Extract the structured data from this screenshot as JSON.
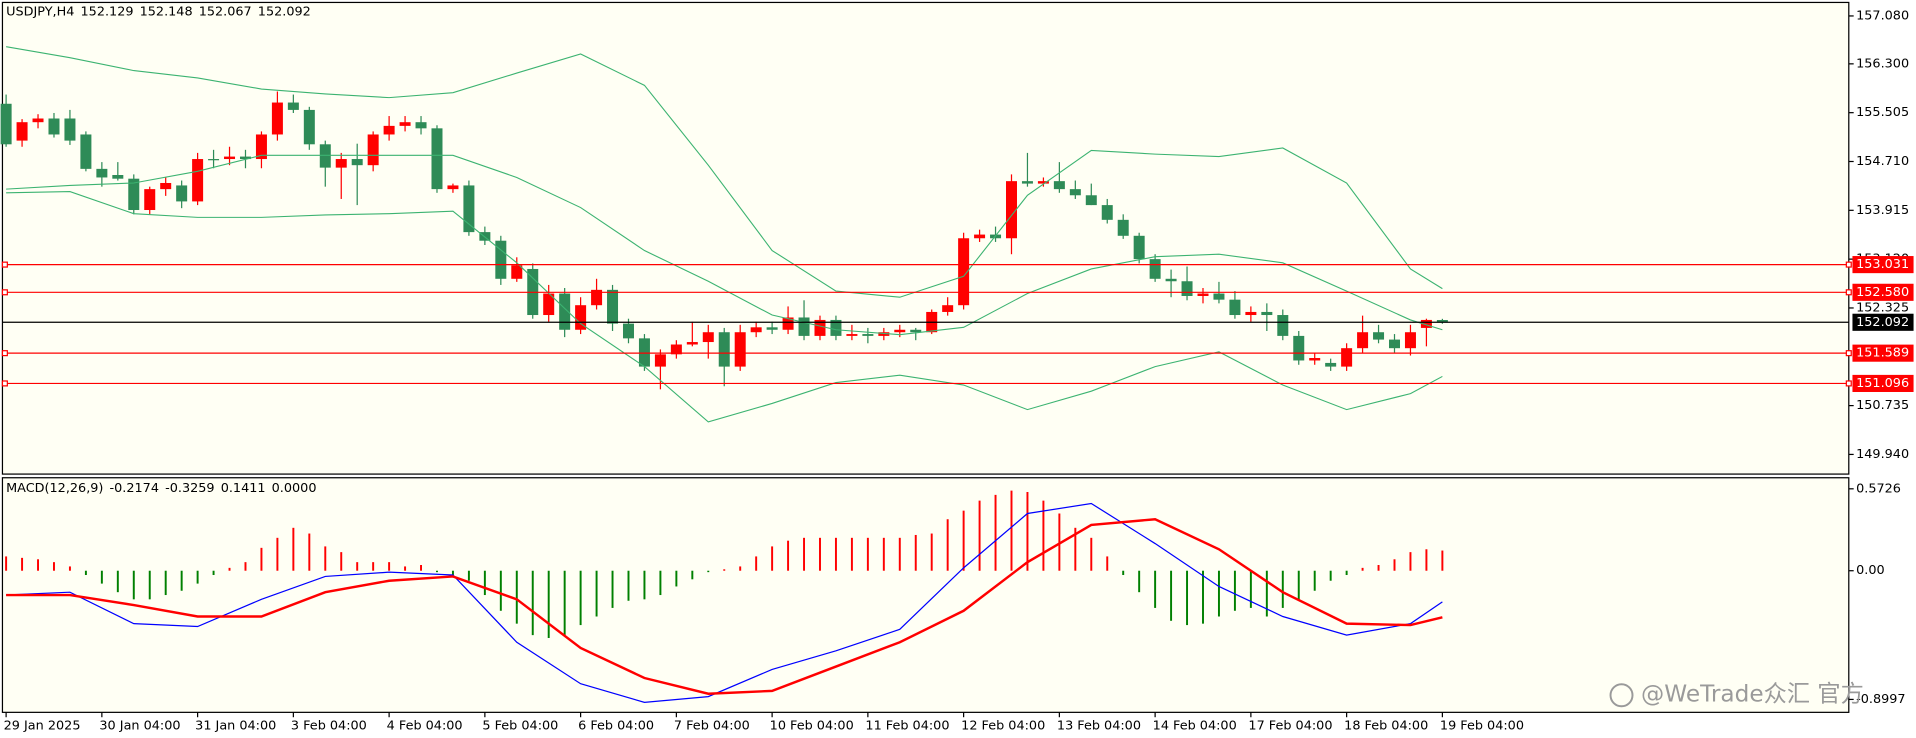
{
  "watermark": "@WeTrade众汇 官方",
  "chart_data": [
    {
      "type": "candlestick",
      "title": "USDJPY,H4",
      "readout": [
        152.129,
        152.148,
        152.067,
        152.092
      ],
      "categories": [
        "29 Jan 2025",
        null,
        null,
        null,
        null,
        null,
        "30 Jan 04:00",
        null,
        null,
        null,
        null,
        null,
        "31 Jan 04:00",
        null,
        null,
        null,
        null,
        null,
        "3 Feb 04:00",
        null,
        null,
        null,
        null,
        null,
        "4 Feb 04:00",
        null,
        null,
        null,
        null,
        null,
        "5 Feb 04:00",
        null,
        null,
        null,
        null,
        null,
        "6 Feb 04:00",
        null,
        null,
        null,
        null,
        null,
        "7 Feb 04:00",
        null,
        null,
        null,
        null,
        null,
        "10 Feb 04:00",
        null,
        null,
        null,
        null,
        null,
        "11 Feb 04:00",
        null,
        null,
        null,
        null,
        null,
        "12 Feb 04:00",
        null,
        null,
        null,
        null,
        null,
        "13 Feb 04:00",
        null,
        null,
        null,
        null,
        null,
        "14 Feb 04:00",
        null,
        null,
        null,
        null,
        null,
        "17 Feb 04:00",
        null,
        null,
        null,
        null,
        null,
        "18 Feb 04:00",
        null,
        null,
        null,
        null,
        null,
        "19 Feb 04:00"
      ],
      "open": [
        155.65,
        155.05,
        155.35,
        155.41,
        155.41,
        155.15,
        154.59,
        154.49,
        154.43,
        153.92,
        154.26,
        154.32,
        154.06,
        154.75,
        154.75,
        154.79,
        154.75,
        155.15,
        155.67,
        155.55,
        154.99,
        154.61,
        154.75,
        154.65,
        155.15,
        155.29,
        155.35,
        155.25,
        154.26,
        154.32,
        153.56,
        153.42,
        152.8,
        152.96,
        152.21,
        152.56,
        151.97,
        152.37,
        152.62,
        152.07,
        151.83,
        151.37,
        151.57,
        151.73,
        151.77,
        151.93,
        151.37,
        151.93,
        152.01,
        151.97,
        152.17,
        151.87,
        152.13,
        151.87,
        151.9,
        151.87,
        151.93,
        151.97,
        151.93,
        152.26,
        152.37,
        153.46,
        153.52,
        153.46,
        154.39,
        154.35,
        154.39,
        154.26,
        154.16,
        154.0,
        153.76,
        153.5,
        153.12,
        152.8,
        152.76,
        152.52,
        152.56,
        152.46,
        152.21,
        152.26,
        152.21,
        151.87,
        151.47,
        151.43,
        151.37,
        151.67,
        151.93,
        151.81,
        151.67,
        152.0,
        152.129
      ],
      "high": [
        155.8,
        155.4,
        155.48,
        155.5,
        155.55,
        155.2,
        154.7,
        154.7,
        154.5,
        154.3,
        154.45,
        154.4,
        154.85,
        154.9,
        154.95,
        154.9,
        155.2,
        155.85,
        155.8,
        155.6,
        155.05,
        154.85,
        155.0,
        155.2,
        155.45,
        155.45,
        155.45,
        155.3,
        154.35,
        154.4,
        153.65,
        153.5,
        153.15,
        153.05,
        152.7,
        152.65,
        152.5,
        152.8,
        152.7,
        152.15,
        151.9,
        151.65,
        151.8,
        152.1,
        152.05,
        152.0,
        152.05,
        152.1,
        152.1,
        152.35,
        152.45,
        152.2,
        152.2,
        152.05,
        152.0,
        152.0,
        152.05,
        152.0,
        152.3,
        152.5,
        153.55,
        153.6,
        153.65,
        154.5,
        154.85,
        154.45,
        154.7,
        154.4,
        154.35,
        154.1,
        153.85,
        153.55,
        153.2,
        152.95,
        153.0,
        152.65,
        152.75,
        152.6,
        152.35,
        152.4,
        152.3,
        151.95,
        151.6,
        151.5,
        151.75,
        152.2,
        152.05,
        151.9,
        152.05,
        152.15,
        152.148
      ],
      "low": [
        154.95,
        154.95,
        155.25,
        155.1,
        154.98,
        154.55,
        154.3,
        154.4,
        153.85,
        153.85,
        154.15,
        153.95,
        154.0,
        154.6,
        154.65,
        154.6,
        154.6,
        155.05,
        155.5,
        154.9,
        154.3,
        154.1,
        154.0,
        154.55,
        155.05,
        155.2,
        155.15,
        154.2,
        154.2,
        153.5,
        153.35,
        152.7,
        152.75,
        152.15,
        152.1,
        151.85,
        151.9,
        152.3,
        151.95,
        151.75,
        151.3,
        151.0,
        151.5,
        151.7,
        151.5,
        151.05,
        151.3,
        151.85,
        151.9,
        151.9,
        151.8,
        151.8,
        151.8,
        151.8,
        151.75,
        151.8,
        151.85,
        151.8,
        151.9,
        152.2,
        152.3,
        153.4,
        153.4,
        153.2,
        154.3,
        154.3,
        154.2,
        154.1,
        154.0,
        153.7,
        153.45,
        153.05,
        152.75,
        152.5,
        152.45,
        152.4,
        152.4,
        152.15,
        152.1,
        151.95,
        151.8,
        151.4,
        151.4,
        151.3,
        151.3,
        151.6,
        151.75,
        151.6,
        151.55,
        151.7,
        152.067
      ],
      "close": [
        154.99,
        155.35,
        155.41,
        155.15,
        155.05,
        154.59,
        154.45,
        154.43,
        153.92,
        154.26,
        154.36,
        154.06,
        154.75,
        154.74,
        154.79,
        154.75,
        155.15,
        155.67,
        155.55,
        154.99,
        154.61,
        154.75,
        154.65,
        155.15,
        155.29,
        155.35,
        155.25,
        154.26,
        154.32,
        153.56,
        153.42,
        152.8,
        153.02,
        152.21,
        152.56,
        151.97,
        152.37,
        152.62,
        152.07,
        151.83,
        151.37,
        151.57,
        151.73,
        151.77,
        151.93,
        151.37,
        151.93,
        152.01,
        151.97,
        152.17,
        151.87,
        152.13,
        151.87,
        151.9,
        151.87,
        151.93,
        151.97,
        151.93,
        152.26,
        152.37,
        153.46,
        153.52,
        153.46,
        154.39,
        154.35,
        154.39,
        154.26,
        154.16,
        154.0,
        153.76,
        153.5,
        153.12,
        152.8,
        152.76,
        152.52,
        152.56,
        152.46,
        152.21,
        152.26,
        152.21,
        151.87,
        151.47,
        151.51,
        151.37,
        151.67,
        151.93,
        151.81,
        151.67,
        151.93,
        152.13,
        152.092
      ],
      "up_color": "#ff0000",
      "down_color": "#2e8b57",
      "band_x": [
        0,
        4,
        8,
        12,
        16,
        20,
        24,
        28,
        32,
        36,
        40,
        44,
        48,
        52,
        56,
        60,
        64,
        68,
        72,
        76,
        80,
        84,
        88,
        90
      ],
      "bands": [
        {
          "color": "#3cb371",
          "values": [
            156.58,
            156.4,
            156.19,
            156.07,
            155.89,
            155.81,
            155.75,
            155.83,
            156.15,
            156.46,
            155.95,
            154.65,
            153.26,
            152.6,
            152.5,
            152.84,
            154.16,
            154.89,
            154.83,
            154.79,
            154.93,
            154.36,
            152.96,
            152.64
          ]
        },
        {
          "color": "#3cb371",
          "values": [
            154.26,
            154.32,
            154.36,
            154.55,
            154.81,
            154.81,
            154.81,
            154.81,
            154.45,
            153.96,
            153.26,
            152.76,
            152.21,
            151.97,
            151.89,
            152.01,
            152.56,
            152.96,
            153.16,
            153.2,
            153.06,
            152.6,
            152.13,
            151.97
          ]
        },
        {
          "color": "#3cb371",
          "values": [
            154.2,
            154.22,
            153.86,
            153.8,
            153.8,
            153.84,
            153.86,
            153.9,
            153.06,
            152.07,
            151.37,
            150.47,
            150.77,
            151.11,
            151.23,
            151.07,
            150.67,
            150.97,
            151.37,
            151.61,
            151.07,
            150.67,
            150.93,
            151.21
          ]
        }
      ],
      "levels": [
        {
          "value": 153.031,
          "color": "#ff0000"
        },
        {
          "value": 152.58,
          "label": "152.580",
          "color": "#ff0000"
        },
        {
          "value": 151.589,
          "color": "#ff0000"
        },
        {
          "value": 151.096,
          "color": "#ff0000"
        },
        {
          "value": 152.092,
          "color": "#000000"
        }
      ],
      "ylim": [
        149.62,
        157.28
      ],
      "yticks": [
        {
          "value": 157.08,
          "label": "157.080"
        },
        {
          "value": 156.3,
          "label": "156.300"
        },
        155.505,
        {
          "value": 154.71,
          "label": "154.710"
        },
        153.915,
        {
          "value": 153.12,
          "label": "153.120"
        },
        152.325,
        150.735,
        {
          "value": 149.94,
          "label": "149.940"
        }
      ]
    },
    {
      "type": "macd",
      "title": "MACD(12,26,9)",
      "readout": [
        -0.2174,
        -0.3259,
        0.1411,
        {
          "value": 0,
          "label": "0.0000"
        }
      ],
      "histogram": [
        0.1,
        0.09,
        0.08,
        0.06,
        0.03,
        -0.03,
        -0.09,
        -0.15,
        -0.2,
        -0.2,
        -0.17,
        -0.14,
        -0.09,
        -0.03,
        0.02,
        0.06,
        0.16,
        0.23,
        0.3,
        0.26,
        0.17,
        0.13,
        0.06,
        0.06,
        0.06,
        0.03,
        0.04,
        -0.01,
        -0.03,
        -0.07,
        -0.17,
        -0.28,
        -0.37,
        -0.45,
        -0.47,
        -0.45,
        -0.38,
        -0.32,
        -0.26,
        -0.21,
        -0.2,
        -0.17,
        -0.11,
        -0.06,
        -0.01,
        0.01,
        0.03,
        0.1,
        0.17,
        0.21,
        0.23,
        0.23,
        0.23,
        0.23,
        0.23,
        0.23,
        0.23,
        0.25,
        0.26,
        0.36,
        0.42,
        0.49,
        0.53,
        0.56,
        0.55,
        0.49,
        0.4,
        0.3,
        0.23,
        0.1,
        -0.03,
        -0.15,
        -0.26,
        -0.35,
        -0.38,
        -0.37,
        -0.32,
        -0.28,
        -0.26,
        -0.32,
        -0.26,
        -0.2,
        -0.14,
        -0.07,
        -0.03,
        0.02,
        0.04,
        0.08,
        0.13,
        0.15,
        0.1411
      ],
      "up_color": "#ff0000",
      "down_color": "#008000",
      "line_x": [
        0,
        4,
        8,
        12,
        16,
        20,
        24,
        28,
        32,
        36,
        40,
        44,
        48,
        52,
        56,
        60,
        64,
        68,
        72,
        76,
        80,
        84,
        88,
        90
      ],
      "series": [
        {
          "color": "#0000ff",
          "values": [
            -0.17,
            -0.15,
            -0.37,
            -0.39,
            -0.2,
            -0.04,
            -0.01,
            -0.03,
            -0.5,
            -0.79,
            -0.92,
            -0.88,
            -0.69,
            -0.56,
            -0.41,
            0.02,
            0.4,
            0.47,
            0.19,
            -0.11,
            -0.32,
            -0.45,
            -0.37,
            -0.2174
          ]
        },
        {
          "color": "#ff0000",
          "values": [
            -0.17,
            -0.17,
            -0.24,
            -0.32,
            -0.32,
            -0.15,
            -0.07,
            -0.04,
            -0.2,
            -0.54,
            -0.75,
            -0.86,
            -0.84,
            -0.67,
            -0.5,
            -0.28,
            0.06,
            0.32,
            0.36,
            0.15,
            -0.15,
            -0.37,
            -0.38,
            -0.3259
          ]
        }
      ],
      "ylim": [
        -0.99,
        0.65
      ],
      "yticks": [
        0.5726,
        {
          "value": 0,
          "label": "0.00"
        },
        -0.8997
      ]
    }
  ]
}
